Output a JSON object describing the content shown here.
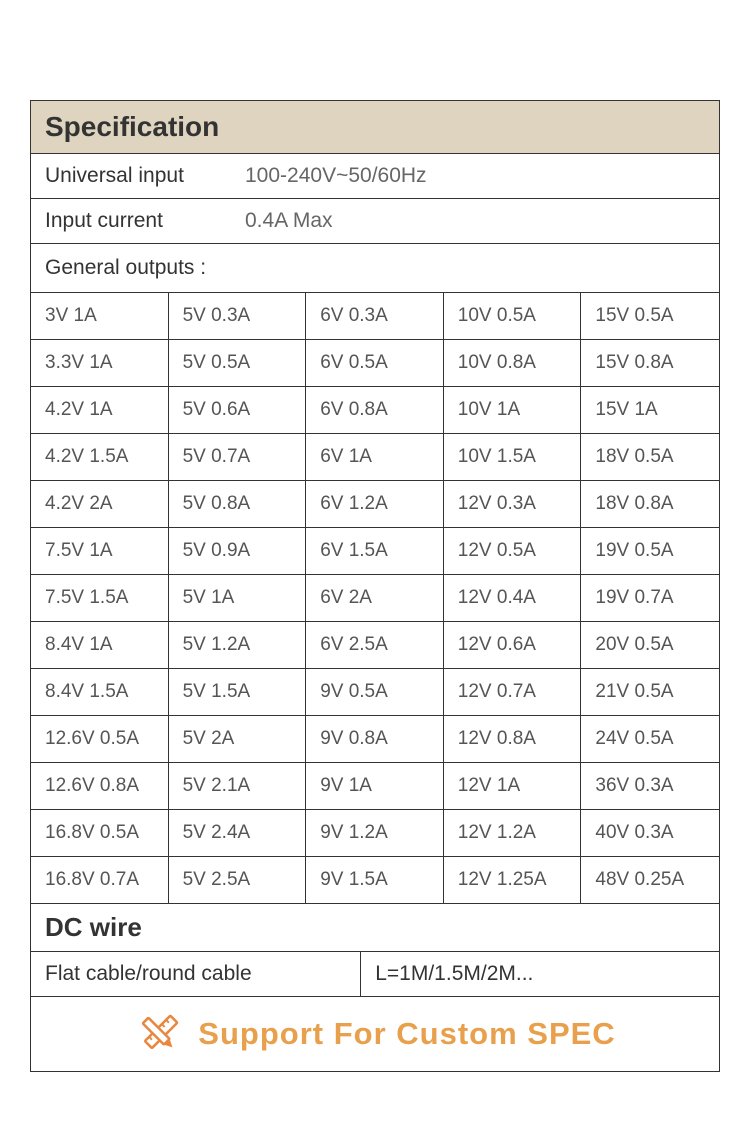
{
  "specification": {
    "header_title": "Specification",
    "header_bg": "#ded4bf",
    "rows": [
      {
        "label": "Universal input",
        "value": "100-240V~50/60Hz"
      },
      {
        "label": "Input current",
        "value": "0.4A Max"
      }
    ],
    "outputs_label": "General outputs :",
    "outputs_columns": 5,
    "outputs": [
      [
        "3V 1A",
        "5V 0.3A",
        "6V 0.3A",
        "10V 0.5A",
        "15V 0.5A"
      ],
      [
        "3.3V 1A",
        "5V 0.5A",
        "6V 0.5A",
        "10V 0.8A",
        "15V 0.8A"
      ],
      [
        "4.2V 1A",
        "5V 0.6A",
        "6V 0.8A",
        "10V 1A",
        "15V 1A"
      ],
      [
        "4.2V 1.5A",
        "5V 0.7A",
        "6V 1A",
        "10V 1.5A",
        "18V 0.5A"
      ],
      [
        "4.2V 2A",
        "5V 0.8A",
        "6V 1.2A",
        "12V 0.3A",
        "18V 0.8A"
      ],
      [
        "7.5V 1A",
        "5V 0.9A",
        "6V 1.5A",
        "12V 0.5A",
        "19V 0.5A"
      ],
      [
        "7.5V 1.5A",
        "5V 1A",
        "6V 2A",
        "12V 0.4A",
        "19V 0.7A"
      ],
      [
        "8.4V 1A",
        "5V 1.2A",
        "6V 2.5A",
        "12V 0.6A",
        "20V 0.5A"
      ],
      [
        "8.4V 1.5A",
        "5V 1.5A",
        "9V 0.5A",
        "12V 0.7A",
        "21V 0.5A"
      ],
      [
        "12.6V 0.5A",
        "5V 2A",
        "9V 0.8A",
        "12V 0.8A",
        "24V 0.5A"
      ],
      [
        "12.6V 0.8A",
        "5V 2.1A",
        "9V 1A",
        "12V 1A",
        "36V 0.3A"
      ],
      [
        "16.8V 0.5A",
        "5V 2.4A",
        "9V 1.2A",
        "12V 1.2A",
        "40V 0.3A"
      ],
      [
        "16.8V 0.7A",
        "5V 2.5A",
        "9V 1.5A",
        "12V 1.25A",
        "48V 0.25A"
      ]
    ]
  },
  "dc_wire": {
    "title": "DC wire",
    "left": "Flat cable/round cable",
    "right": "L=1M/1.5M/2M..."
  },
  "custom": {
    "text": "Support For Custom SPEC",
    "icon_color": "#e8873d",
    "text_color": "#e8a04c"
  },
  "colors": {
    "border": "#333333",
    "header_bg": "#ded4bf",
    "label_text": "#333333",
    "value_text": "#666666",
    "cell_text": "#555555",
    "background": "#ffffff"
  },
  "typography": {
    "header_fontsize": 28,
    "label_fontsize": 21,
    "cell_fontsize": 19,
    "dc_title_fontsize": 26,
    "custom_fontsize": 31
  }
}
